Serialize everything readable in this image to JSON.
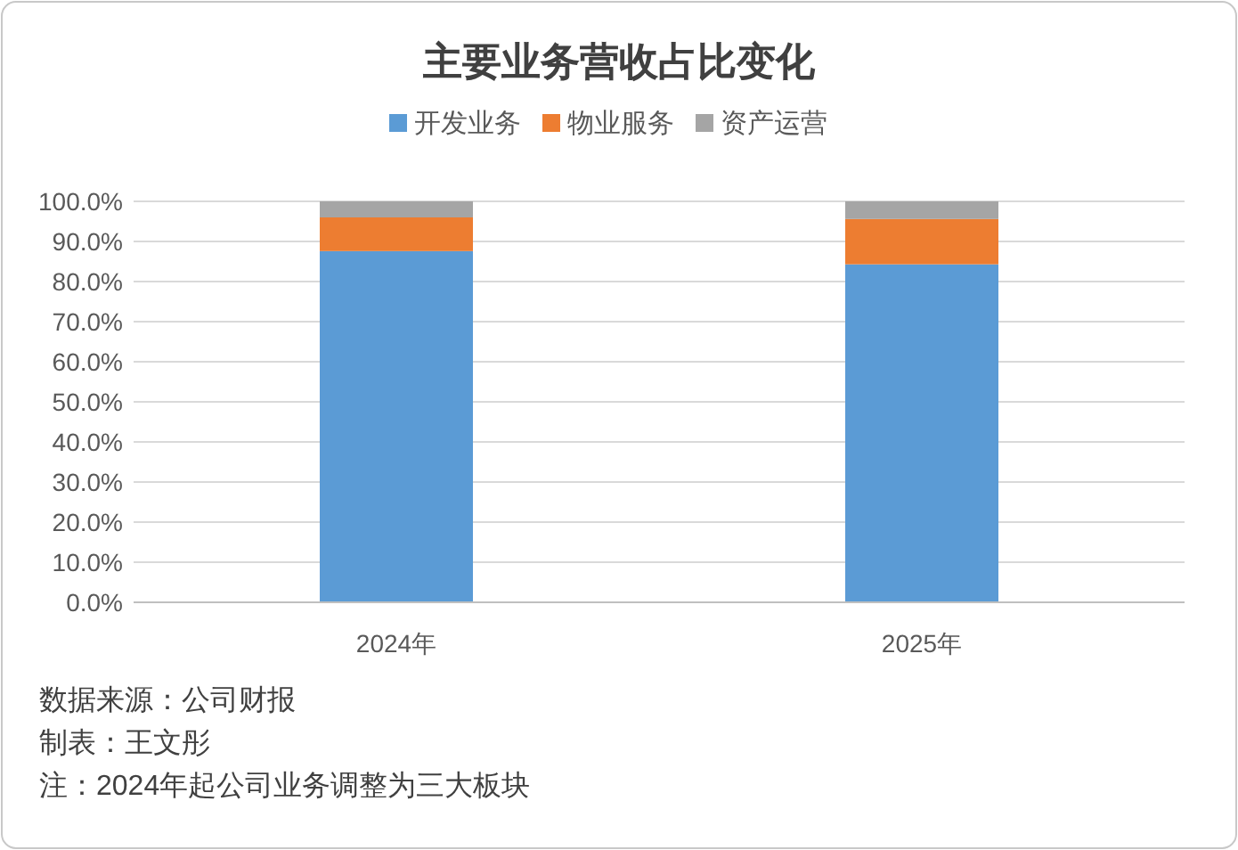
{
  "chart_data": {
    "type": "bar",
    "title": "主要业务营收占比变化",
    "categories": [
      "2024年",
      "2025年"
    ],
    "stacked": true,
    "series": [
      {
        "name": "开发业务",
        "color": "#5b9bd5",
        "values": [
          87.6,
          84.3
        ]
      },
      {
        "name": "物业服务",
        "color": "#ed7d31",
        "values": [
          8.4,
          11.3
        ]
      },
      {
        "name": "资产运营",
        "color": "#a5a5a5",
        "values": [
          4.0,
          4.4
        ]
      }
    ],
    "ylim": [
      0,
      100
    ],
    "yticks": [
      {
        "value": 0,
        "label": "0.0%"
      },
      {
        "value": 10,
        "label": "10.0%"
      },
      {
        "value": 20,
        "label": "20.0%"
      },
      {
        "value": 30,
        "label": "30.0%"
      },
      {
        "value": 40,
        "label": "40.0%"
      },
      {
        "value": 50,
        "label": "50.0%"
      },
      {
        "value": 60,
        "label": "60.0%"
      },
      {
        "value": 70,
        "label": "70.0%"
      },
      {
        "value": 80,
        "label": "80.0%"
      },
      {
        "value": 90,
        "label": "90.0%"
      },
      {
        "value": 100,
        "label": "100.0%"
      }
    ],
    "grid": "y",
    "legend": "top",
    "annotations": [
      "数据来源：公司财报",
      "制表：王文彤",
      "注：2024年起公司业务调整为三大板块"
    ]
  }
}
